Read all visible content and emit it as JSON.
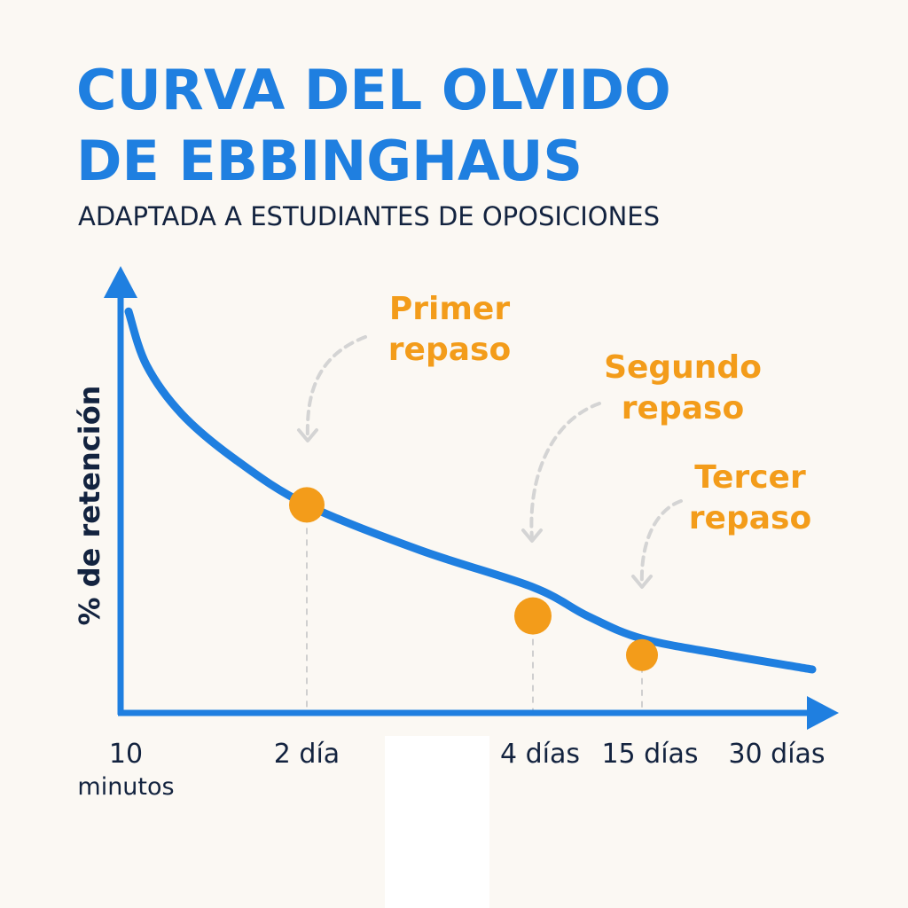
{
  "header": {
    "title_line1": "CURVA DEL OLVIDO",
    "title_line2": "DE EBBINGHAUS",
    "subtitle": "ADAPTADA A ESTUDIANTES DE OPOSICIONES"
  },
  "colors": {
    "curve": "#1f7fe0",
    "axis": "#1f7fe0",
    "points": "#f39c1a",
    "annotation_text": "#f39c1a",
    "tick_text": "#13233f",
    "arrows": "#d4d4d4"
  },
  "chart_data": {
    "type": "line",
    "ylabel": "% de retención",
    "x_ticks": [
      "10 minutos",
      "2 día",
      "4 días",
      "15 días",
      "30 días"
    ],
    "annotations": [
      {
        "label_line1": "Primer",
        "label_line2": "repaso",
        "at_tick": "2 día"
      },
      {
        "label_line1": "Segundo",
        "label_line2": "repaso",
        "at_tick": "4 días"
      },
      {
        "label_line1": "Tercer",
        "label_line2": "repaso",
        "at_tick": "15 días"
      }
    ],
    "series": [
      {
        "x_ticks_index": [
          0,
          0.1,
          0.3,
          0.6,
          1,
          1.5,
          2,
          2.5,
          3,
          3.5,
          4
        ],
        "retention": [
          98,
          85,
          73,
          62,
          51,
          40,
          31,
          24,
          18.5,
          14.5,
          11
        ]
      }
    ],
    "review_points_retention": [
      51,
      24,
      14.5
    ],
    "grid": false,
    "y_tick_labels": false
  }
}
